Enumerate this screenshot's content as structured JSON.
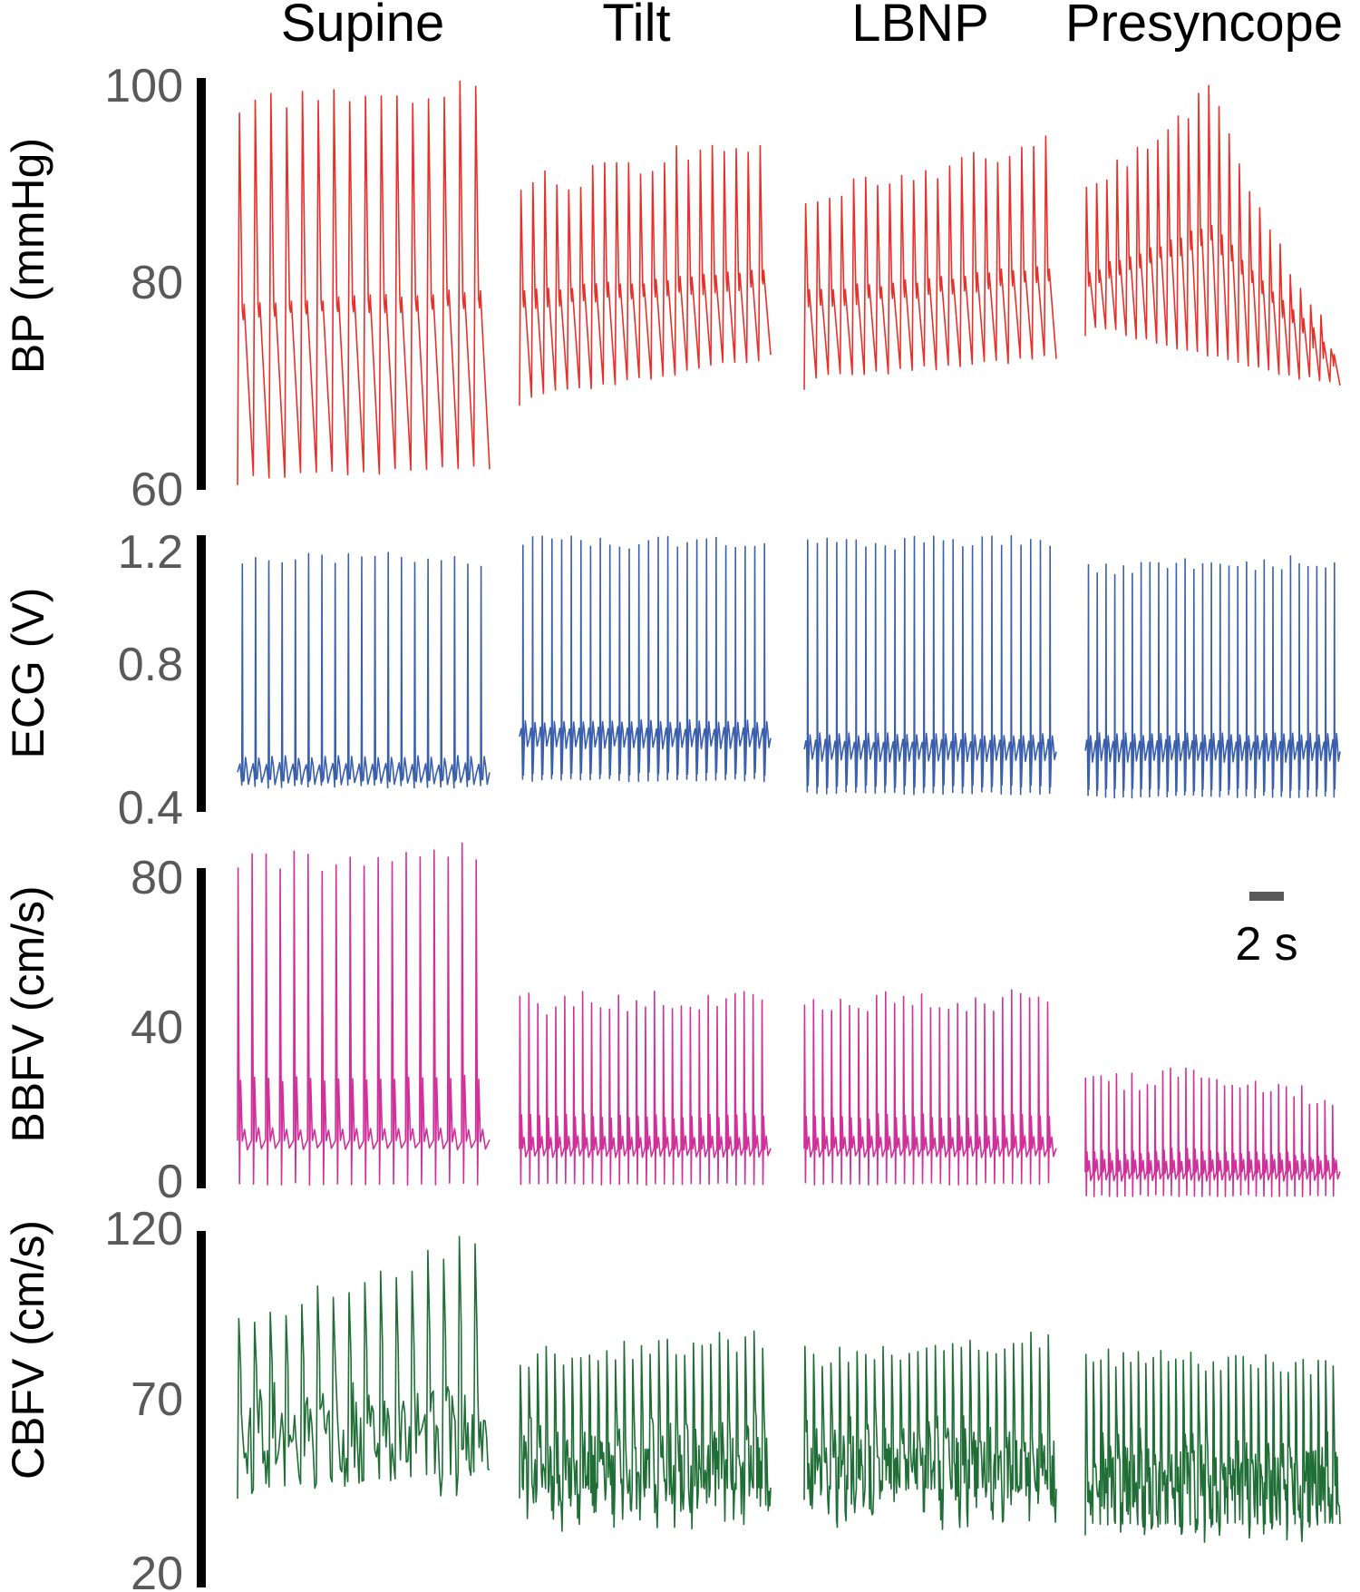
{
  "chart_data": {
    "type": "line",
    "conditions": [
      "Supine",
      "Tilt",
      "LBNP",
      "Presyncope"
    ],
    "scale_bar": {
      "value": 2,
      "label": "2 s"
    },
    "panels": [
      {
        "key": "bp",
        "ylabel": "BP (mmHg)",
        "ylim": [
          60,
          100
        ],
        "ticks": [
          60,
          80,
          100
        ],
        "color": "#e8302a",
        "series": [
          {
            "name": "Supine",
            "beats": 16,
            "peak": [
              98,
              100
            ],
            "notch": 77,
            "trough": [
              60,
              61
            ]
          },
          {
            "name": "Tilt",
            "beats": 21,
            "peak": [
              90,
              94
            ],
            "notch": 78,
            "trough": [
              68,
              72
            ]
          },
          {
            "name": "LBNP",
            "beats": 21,
            "peak": [
              89,
              94
            ],
            "notch": 78,
            "trough": [
              70,
              72
            ]
          },
          {
            "name": "Presyncope",
            "beats": 25,
            "peak": [
              90,
              99,
              74
            ],
            "notch": 80,
            "trough": [
              75,
              69
            ]
          }
        ]
      },
      {
        "key": "ecg",
        "ylabel": "ECG (V)",
        "ylim": [
          0.4,
          1.2
        ],
        "ticks": [
          0.4,
          0.8,
          1.2
        ],
        "color": "#3a5fac",
        "series": [
          {
            "name": "Supine",
            "beats": 19,
            "peak": [
              1.15,
              1.15
            ],
            "baseline": 0.49,
            "trough": [
              0.45,
              0.45
            ]
          },
          {
            "name": "Tilt",
            "beats": 26,
            "peak": [
              1.2,
              1.2
            ],
            "baseline": 0.6,
            "trough": [
              0.47,
              0.47
            ]
          },
          {
            "name": "LBNP",
            "beats": 26,
            "peak": [
              1.2,
              1.2
            ],
            "baseline": 0.56,
            "trough": [
              0.43,
              0.43
            ]
          },
          {
            "name": "Presyncope",
            "beats": 29,
            "peak": [
              1.12,
              1.14
            ],
            "baseline": 0.56,
            "trough": [
              0.42,
              0.42
            ]
          }
        ]
      },
      {
        "key": "bbfv",
        "ylabel": "BBFV (cm/s)",
        "ylim": [
          0,
          80
        ],
        "ticks": [
          0,
          40,
          80
        ],
        "color": "#d0309a",
        "series": [
          {
            "name": "Supine",
            "beats": 18,
            "peak": [
              82,
              84
            ],
            "baseline": 11,
            "trough": [
              0,
              0
            ]
          },
          {
            "name": "Tilt",
            "beats": 28,
            "peak": [
              46,
              47
            ],
            "baseline": 9,
            "trough": [
              0,
              0
            ]
          },
          {
            "name": "LBNP",
            "beats": 28,
            "peak": [
              46,
              47
            ],
            "baseline": 9,
            "trough": [
              0,
              0
            ]
          },
          {
            "name": "Presyncope",
            "beats": 33,
            "peak": [
              25,
              28,
              20
            ],
            "baseline": 3,
            "trough": [
              -3,
              -3
            ]
          }
        ]
      },
      {
        "key": "cbfv",
        "ylabel": "CBFV (cm/s)",
        "ylim": [
          20,
          120
        ],
        "ticks": [
          20,
          70,
          120
        ],
        "color": "#1f6e35",
        "series": [
          {
            "name": "Supine",
            "beats": 16,
            "peak": [
              95,
              118
            ],
            "baseline": 68,
            "trough": [
              40,
              45
            ]
          },
          {
            "name": "Tilt",
            "beats": 29,
            "peak": [
              85,
              90
            ],
            "baseline": 58,
            "trough": [
              40,
              40
            ]
          },
          {
            "name": "LBNP",
            "beats": 29,
            "peak": [
              85,
              90
            ],
            "baseline": 58,
            "trough": [
              40,
              40
            ]
          },
          {
            "name": "Presyncope",
            "beats": 34,
            "peak": [
              85,
              82
            ],
            "baseline": 55,
            "trough": [
              30,
              30
            ]
          }
        ]
      }
    ]
  },
  "colors": {
    "axis": "#000000",
    "tick_text": "#595959",
    "title_text": "#000000",
    "scale_bar": "#595959"
  }
}
